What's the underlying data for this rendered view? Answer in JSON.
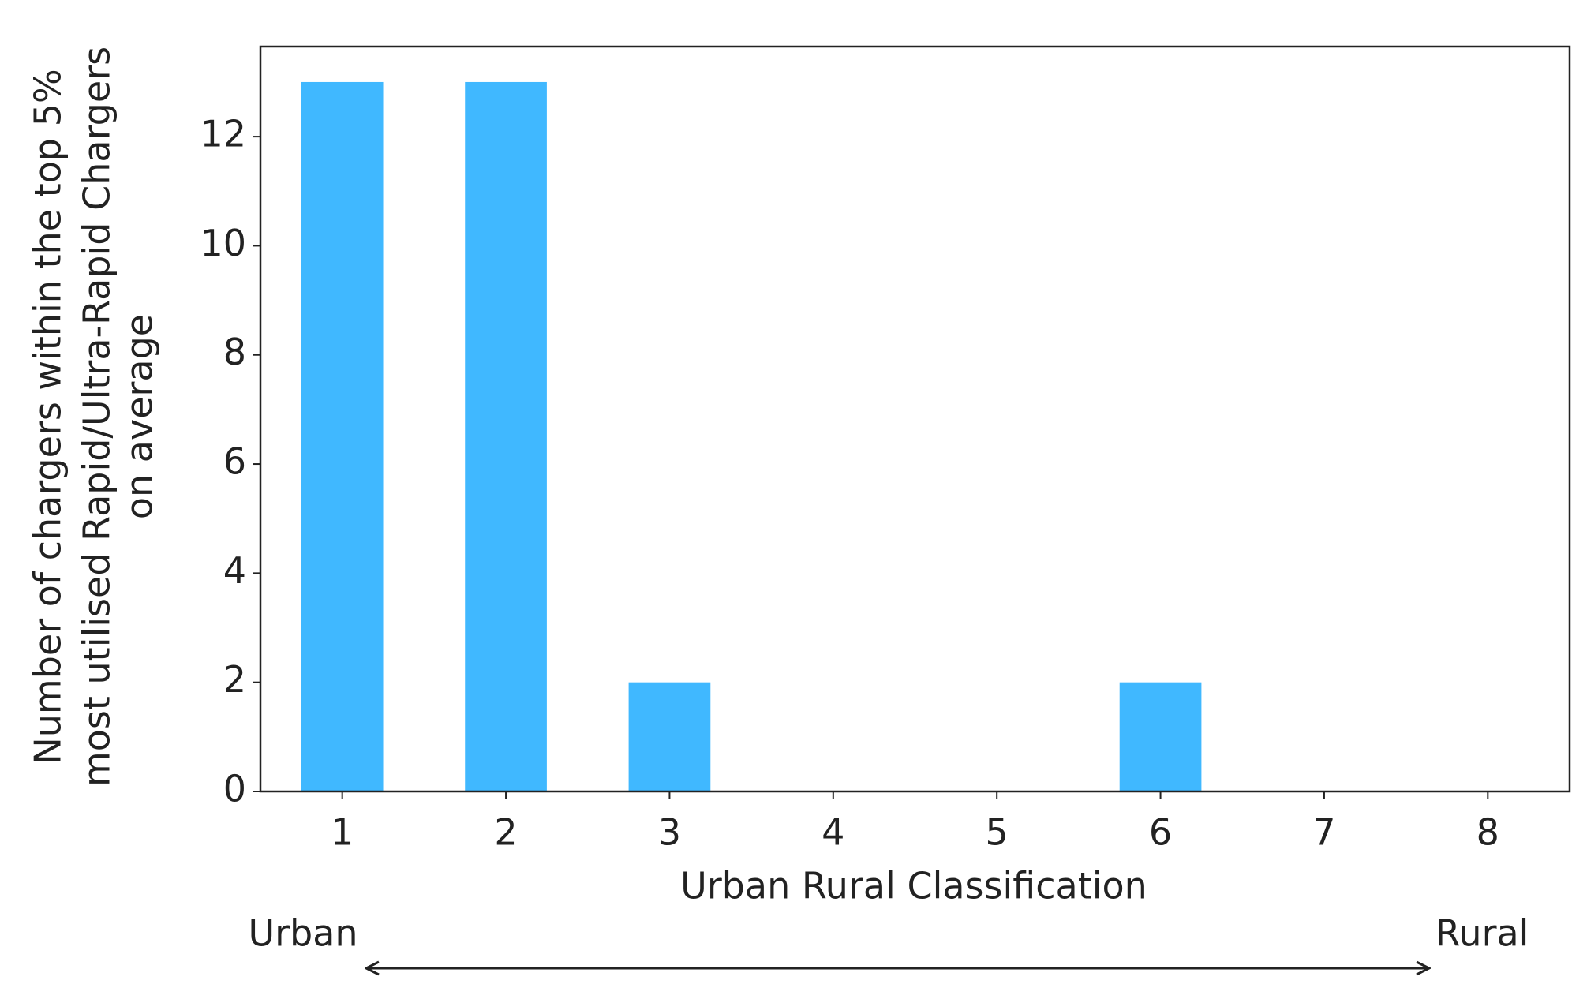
{
  "chart_data": {
    "type": "bar",
    "categories": [
      "1",
      "2",
      "3",
      "4",
      "5",
      "6",
      "7",
      "8"
    ],
    "values": [
      13,
      13,
      2,
      0,
      0,
      2,
      0,
      0
    ],
    "color": "#40b8ff",
    "ylim": [
      0,
      13.65
    ],
    "yticks": [
      0,
      2,
      4,
      6,
      8,
      10,
      12
    ],
    "x_label": "Urban Rural Classification",
    "y_label_lines": [
      "Number of chargers within the top 5%",
      "most utilised Rapid/Ultra-Rapid Chargers",
      "on average"
    ],
    "annotations": [
      "Urban",
      "Rural"
    ],
    "grid": false
  }
}
